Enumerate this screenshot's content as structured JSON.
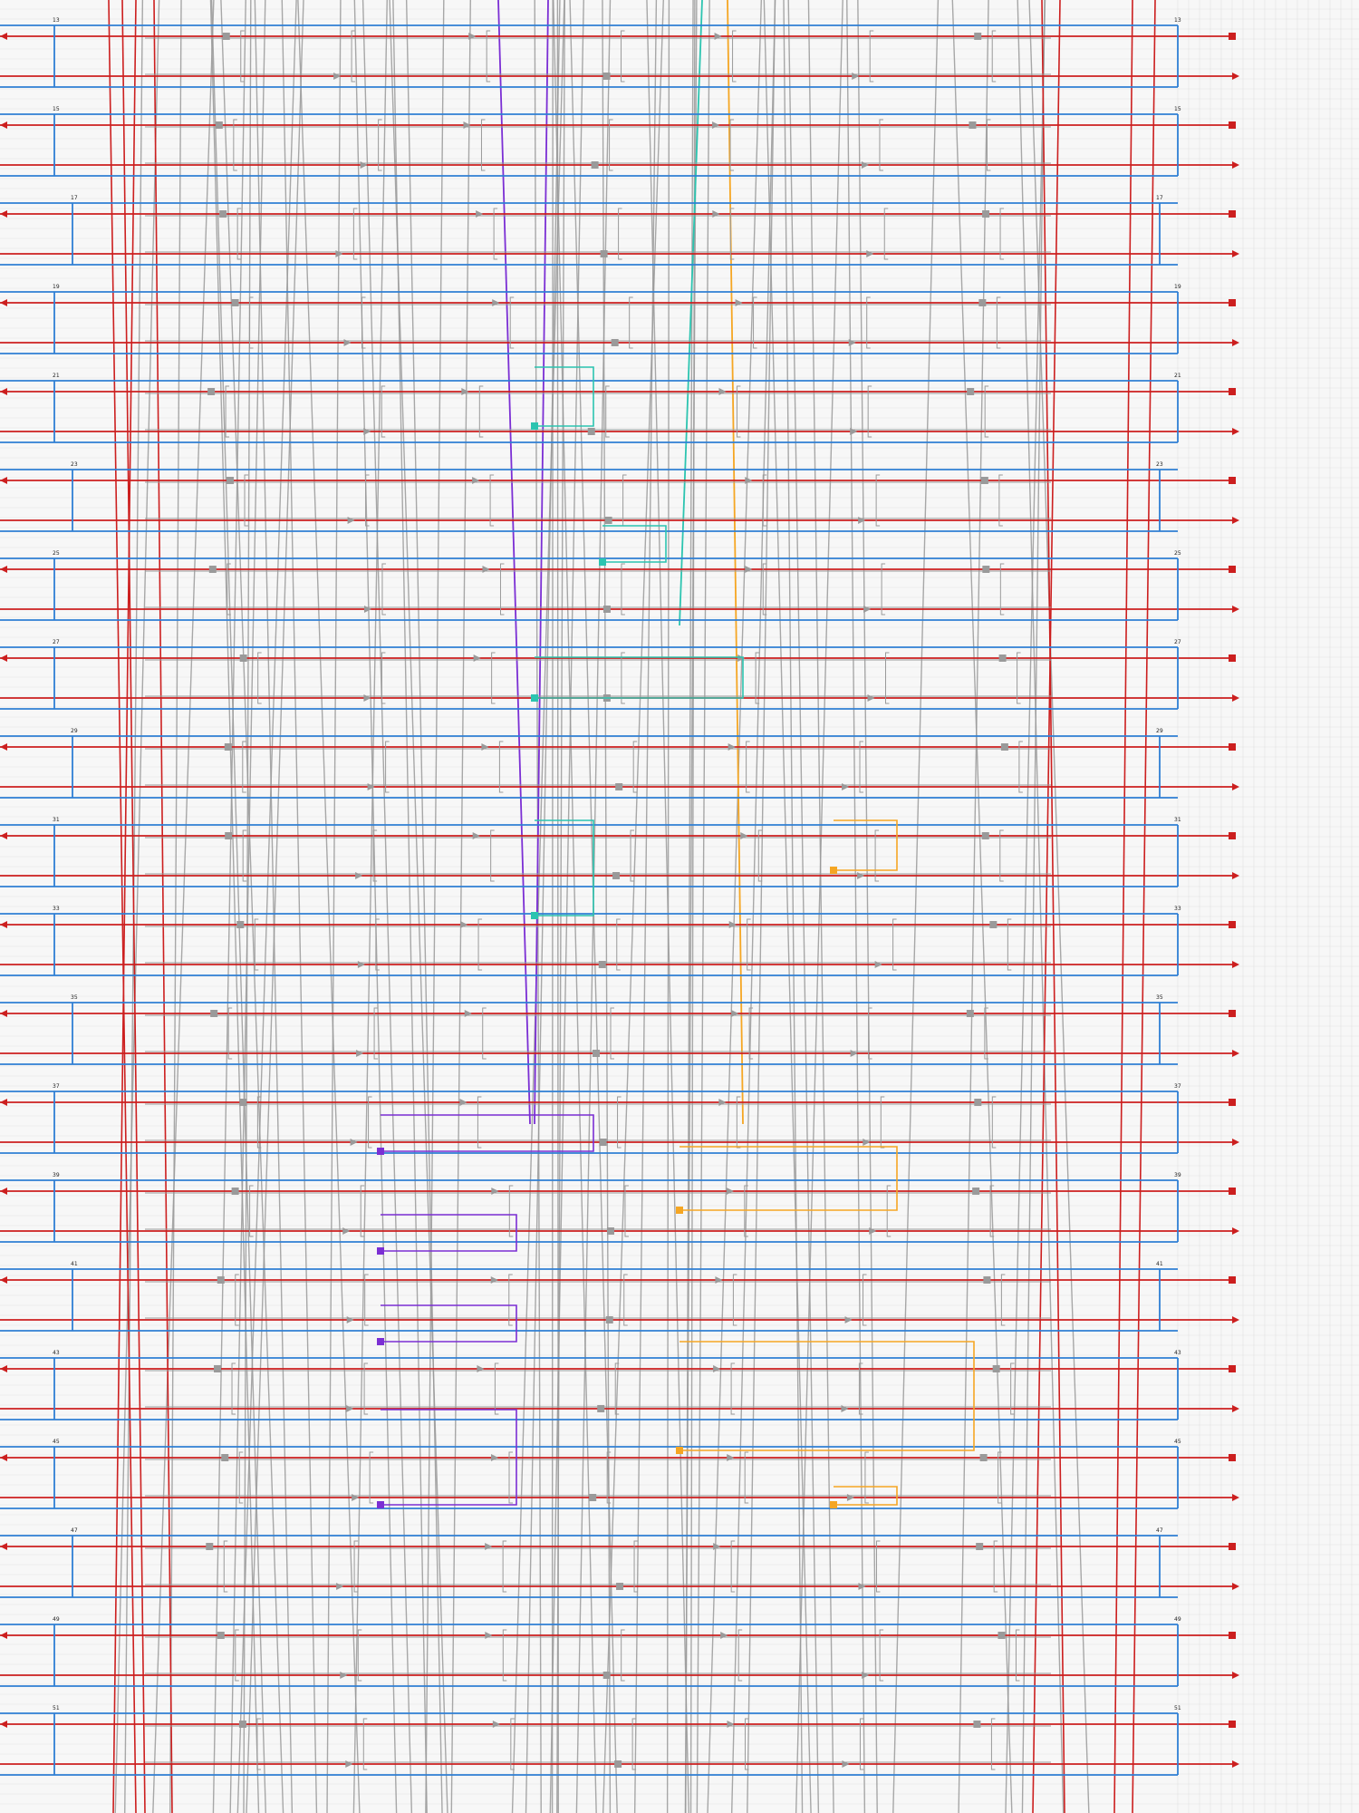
{
  "diagram": {
    "kind": "wiring-schematic",
    "colors": {
      "background": "#f7f7f7",
      "grid": "#e2e2e2",
      "red": "#cc1f1f",
      "blue": "#2f7fd4",
      "gray": "#9a9a9a",
      "purple": "#7b2fd4",
      "teal": "#2cc4b0",
      "orange": "#f5a623"
    },
    "rows": [
      {
        "id": "r1",
        "labels": [
          "13",
          "13"
        ]
      },
      {
        "id": "r2",
        "labels": [
          "15",
          "15"
        ]
      },
      {
        "id": "r3",
        "labels": [
          "17",
          "17"
        ]
      },
      {
        "id": "r4",
        "labels": [
          "19",
          "19"
        ]
      },
      {
        "id": "r5",
        "labels": [
          "21",
          "21"
        ]
      },
      {
        "id": "r6",
        "labels": [
          "23",
          "23"
        ]
      },
      {
        "id": "r7",
        "labels": [
          "25",
          "25"
        ]
      },
      {
        "id": "r8",
        "labels": [
          "27",
          "27"
        ]
      },
      {
        "id": "r9",
        "labels": [
          "29",
          "29"
        ]
      },
      {
        "id": "r10",
        "labels": [
          "31",
          "31"
        ]
      },
      {
        "id": "r11",
        "labels": [
          "33",
          "33"
        ]
      },
      {
        "id": "r12",
        "labels": [
          "35",
          "35"
        ]
      },
      {
        "id": "r13",
        "labels": [
          "37",
          "37"
        ]
      },
      {
        "id": "r14",
        "labels": [
          "39",
          "39"
        ]
      },
      {
        "id": "r15",
        "labels": [
          "41",
          "41"
        ]
      },
      {
        "id": "r16",
        "labels": [
          "43",
          "43"
        ]
      },
      {
        "id": "r17",
        "labels": [
          "45",
          "45"
        ]
      },
      {
        "id": "r18",
        "labels": [
          "47",
          "47"
        ]
      },
      {
        "id": "r19",
        "labels": [
          "49",
          "49"
        ]
      },
      {
        "id": "r20",
        "labels": [
          "51",
          "51"
        ]
      }
    ]
  }
}
